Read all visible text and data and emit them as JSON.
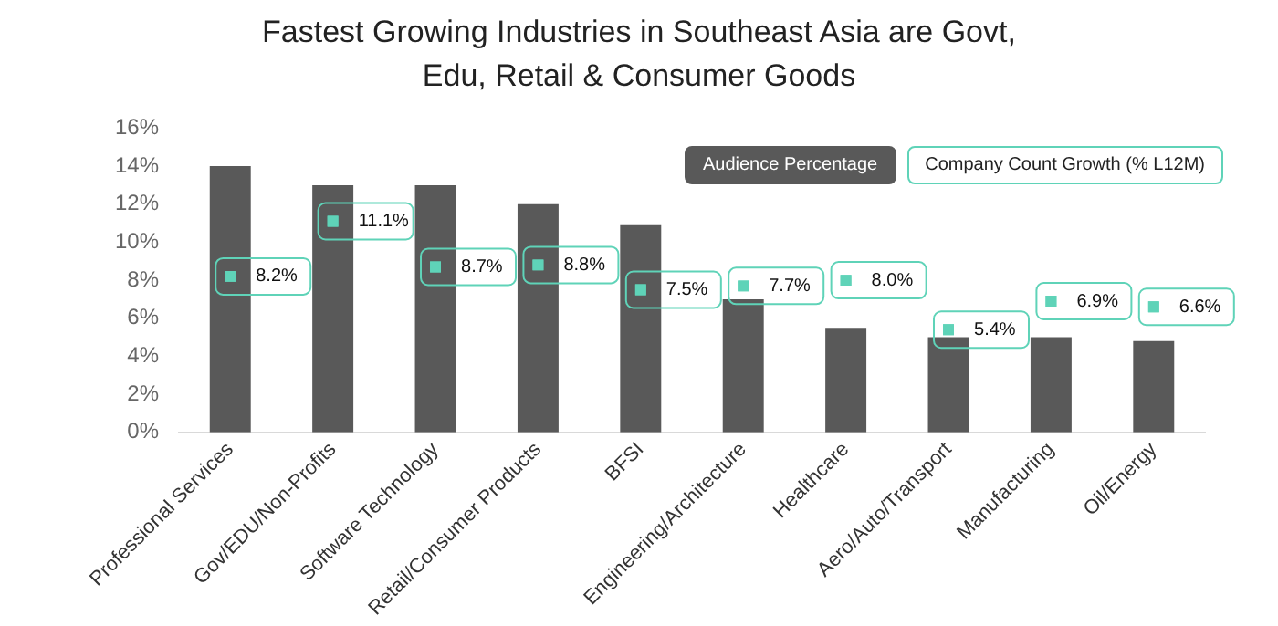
{
  "chart_data": {
    "type": "bar",
    "title": "Fastest Growing Industries in Southeast Asia are Govt, Edu, Retail & Consumer Goods",
    "categories": [
      "Professional Services",
      "Gov/EDU/Non-Profits",
      "Software Technology",
      "Retail/Consumer Products",
      "BFSI",
      "Engineering/Architecture",
      "Healthcare",
      "Aero/Auto/Transport",
      "Manufacturing",
      "Oil/Energy"
    ],
    "series": [
      {
        "name": "Audience Percentage",
        "color": "#595959",
        "values": [
          14,
          13,
          13,
          12,
          10.9,
          7,
          5.5,
          5,
          5,
          4.8
        ]
      },
      {
        "name": "Company Count Growth (% L12M)",
        "type": "scatter",
        "color": "#5fd3b8",
        "marker": "square",
        "values": [
          8.2,
          11.1,
          8.7,
          8.8,
          7.5,
          7.7,
          8.0,
          5.4,
          6.9,
          6.6
        ],
        "value_labels": [
          "8.2%",
          "11.1%",
          "8.7%",
          "8.8%",
          "7.5%",
          "7.7%",
          "8.0%",
          "5.4%",
          "6.9%",
          "6.6%"
        ]
      }
    ],
    "ylim": [
      0,
      16
    ],
    "yticks": [
      {
        "value": 0,
        "label": "0%"
      },
      {
        "value": 2,
        "label": "2%"
      },
      {
        "value": 4,
        "label": "4%"
      },
      {
        "value": 6,
        "label": "6%"
      },
      {
        "value": 8,
        "label": "8%"
      },
      {
        "value": 10,
        "label": "10%"
      },
      {
        "value": 12,
        "label": "12%"
      },
      {
        "value": 14,
        "label": "14%"
      },
      {
        "value": 16,
        "label": "16%"
      }
    ],
    "grid": false,
    "legend": "top right"
  }
}
